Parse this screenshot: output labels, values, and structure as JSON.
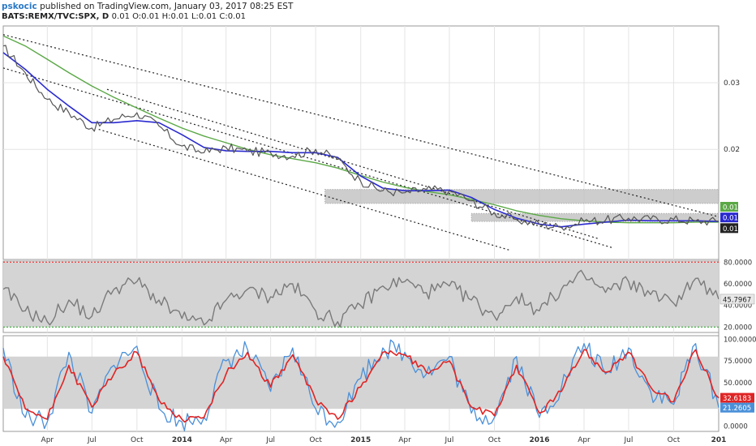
{
  "header": {
    "author": "pskocic",
    "published": "published on TradingView.com, January 03, 2017 08:25 EST",
    "symbol": "BATS:REMX/TVC:SPX, D",
    "ohlc": "0.01 O:0.01 H:0.01 L:0.01 C:0.01"
  },
  "colors": {
    "price": "#555555",
    "ma_fast": "#2a2ad0",
    "ma_slow": "#5aa845",
    "rsi": "#7a7a7a",
    "stoch_k": "#4a90d9",
    "stoch_d": "#e02424",
    "band_fill": "#d4d4d4",
    "upper_level": "#ff3030",
    "lower_level": "#35a835",
    "zone_fill": "#bcbcbc"
  },
  "chart_data": [
    {
      "type": "line",
      "pane": "main",
      "y_ticks": [
        "0.03",
        "0.02"
      ],
      "y_tick_values": [
        0.03,
        0.02
      ],
      "ylim": [
        0.0035,
        0.0385
      ],
      "x": [
        "2013-01-01",
        "2013-02-15",
        "2013-04-01",
        "2013-05-15",
        "2013-07-01",
        "2013-08-15",
        "2013-10-01",
        "2013-11-15",
        "2014-01-01",
        "2014-02-15",
        "2014-04-01",
        "2014-05-15",
        "2014-07-01",
        "2014-08-15",
        "2014-10-01",
        "2014-11-15",
        "2015-01-01",
        "2015-02-15",
        "2015-04-01",
        "2015-05-15",
        "2015-07-01",
        "2015-08-15",
        "2015-10-01",
        "2015-11-15",
        "2016-01-01",
        "2016-02-15",
        "2016-04-01",
        "2016-05-15",
        "2016-07-01",
        "2016-08-15",
        "2016-10-01",
        "2016-11-15",
        "2017-01-01"
      ],
      "series": [
        {
          "key": "price",
          "values": [
            0.0355,
            0.0315,
            0.0275,
            0.0255,
            0.0232,
            0.0245,
            0.0255,
            0.0235,
            0.0205,
            0.0195,
            0.0203,
            0.0197,
            0.0195,
            0.019,
            0.02,
            0.0185,
            0.0152,
            0.0138,
            0.0135,
            0.014,
            0.0138,
            0.0123,
            0.0105,
            0.0095,
            0.0088,
            0.0083,
            0.0092,
            0.0094,
            0.0097,
            0.0095,
            0.0095,
            0.0093,
            0.0092
          ]
        },
        {
          "key": "ma_fast",
          "values": [
            0.0345,
            0.032,
            0.029,
            0.0265,
            0.024,
            0.024,
            0.0243,
            0.024,
            0.0222,
            0.0203,
            0.0198,
            0.0197,
            0.0197,
            0.0195,
            0.0195,
            0.0188,
            0.016,
            0.0142,
            0.0138,
            0.0138,
            0.0139,
            0.0128,
            0.011,
            0.0097,
            0.0088,
            0.0084,
            0.0088,
            0.0091,
            0.0094,
            0.0093,
            0.0093,
            0.0093,
            0.0092
          ]
        },
        {
          "key": "ma_slow",
          "values": [
            0.037,
            0.0355,
            0.0335,
            0.0315,
            0.0295,
            0.0278,
            0.0262,
            0.0247,
            0.0232,
            0.022,
            0.021,
            0.02,
            0.0192,
            0.0186,
            0.018,
            0.0172,
            0.0161,
            0.0151,
            0.0143,
            0.0137,
            0.0132,
            0.0125,
            0.0117,
            0.0108,
            0.0101,
            0.0096,
            0.0093,
            0.0091,
            0.009,
            0.009,
            0.009,
            0.0091,
            0.0091
          ]
        }
      ],
      "channel_lines": [
        {
          "x": [
            "2013-01-01",
            "2017-01-01"
          ],
          "y": [
            0.0372,
            0.0099
          ]
        },
        {
          "x": [
            "2013-01-01",
            "2016-06-01"
          ],
          "y": [
            0.0322,
            0.0052
          ]
        },
        {
          "x": [
            "2013-07-15",
            "2015-11-01"
          ],
          "y": [
            0.023,
            0.0049
          ]
        },
        {
          "x": [
            "2013-08-01",
            "2016-05-01"
          ],
          "y": [
            0.029,
            0.0066
          ]
        }
      ],
      "zones": [
        {
          "x": [
            "2014-10-20",
            "2017-01-01"
          ],
          "y": [
            0.014,
            0.0119
          ]
        },
        {
          "x": [
            "2015-08-15",
            "2017-01-01"
          ],
          "y": [
            0.0104,
            0.0092
          ]
        }
      ],
      "value_labels": [
        {
          "text": "0.01",
          "y": 0.0114,
          "color_key": "ma_slow"
        },
        {
          "text": "0.01",
          "y": 0.0098,
          "color_key": "ma_fast"
        },
        {
          "text": "0.01",
          "y": 0.0082,
          "color_key": "price"
        }
      ]
    },
    {
      "type": "line",
      "pane": "rsi",
      "y_ticks": [
        "80.0000",
        "60.0000",
        "40.0000",
        "20.0000"
      ],
      "y_tick_values": [
        80,
        60,
        40,
        20
      ],
      "ylim": [
        15,
        81
      ],
      "levels": [
        80,
        20
      ],
      "band": [
        80,
        20
      ],
      "last_value_label": "45.7967",
      "last_value": 45.8,
      "x": [
        "2013-01-01",
        "2013-02-15",
        "2013-04-01",
        "2013-05-15",
        "2013-07-01",
        "2013-08-15",
        "2013-10-01",
        "2013-11-15",
        "2014-01-01",
        "2014-02-15",
        "2014-04-01",
        "2014-05-15",
        "2014-07-01",
        "2014-08-15",
        "2014-10-01",
        "2014-11-15",
        "2015-01-01",
        "2015-02-15",
        "2015-04-01",
        "2015-05-15",
        "2015-07-01",
        "2015-08-15",
        "2015-10-01",
        "2015-11-15",
        "2016-01-01",
        "2016-02-15",
        "2016-04-01",
        "2016-05-15",
        "2016-07-01",
        "2016-08-15",
        "2016-10-01",
        "2016-11-15",
        "2017-01-01"
      ],
      "series": [
        {
          "key": "rsi",
          "values": [
            55,
            35,
            25,
            45,
            30,
            55,
            62,
            45,
            28,
            22,
            45,
            55,
            48,
            60,
            35,
            25,
            40,
            58,
            62,
            52,
            58,
            45,
            30,
            48,
            35,
            55,
            68,
            52,
            62,
            50,
            42,
            65,
            45.8
          ]
        }
      ]
    },
    {
      "type": "line",
      "pane": "stochastic",
      "y_ticks": [
        "100.0000",
        "75.0000",
        "50.0000",
        "25.0000",
        "0.0000"
      ],
      "y_tick_values": [
        100,
        75,
        50,
        25,
        0
      ],
      "ylim": [
        -6,
        104
      ],
      "band": [
        80,
        20
      ],
      "last_values": [
        {
          "label": "32.6183",
          "color_key": "stoch_d",
          "value": 32.6
        },
        {
          "label": "21.2605",
          "color_key": "stoch_k",
          "value": 21.3
        }
      ],
      "x": [
        "2013-01-01",
        "2013-02-15",
        "2013-04-01",
        "2013-05-15",
        "2013-07-01",
        "2013-08-15",
        "2013-10-01",
        "2013-11-15",
        "2014-01-01",
        "2014-02-15",
        "2014-04-01",
        "2014-05-15",
        "2014-07-01",
        "2014-08-15",
        "2014-10-01",
        "2014-11-15",
        "2015-01-01",
        "2015-02-15",
        "2015-04-01",
        "2015-05-15",
        "2015-07-01",
        "2015-08-15",
        "2015-10-01",
        "2015-11-15",
        "2016-01-01",
        "2016-02-15",
        "2016-04-01",
        "2016-05-15",
        "2016-07-01",
        "2016-08-15",
        "2016-10-01",
        "2016-11-15",
        "2017-01-01"
      ],
      "series": [
        {
          "key": "stoch_k",
          "values": [
            90,
            10,
            5,
            85,
            15,
            70,
            92,
            20,
            5,
            10,
            75,
            88,
            40,
            90,
            20,
            5,
            55,
            90,
            85,
            60,
            80,
            15,
            10,
            80,
            10,
            45,
            95,
            60,
            90,
            40,
            25,
            95,
            21.3
          ]
        },
        {
          "key": "stoch_d",
          "values": [
            80,
            20,
            8,
            70,
            22,
            60,
            85,
            30,
            8,
            10,
            60,
            85,
            45,
            82,
            30,
            8,
            45,
            85,
            82,
            62,
            75,
            22,
            12,
            70,
            15,
            40,
            88,
            62,
            85,
            45,
            28,
            88,
            32.6
          ]
        }
      ]
    }
  ],
  "x_axis": {
    "ticks": [
      "Apr",
      "Jul",
      "Oct",
      "2014",
      "Apr",
      "Jul",
      "Oct",
      "2015",
      "Apr",
      "Jul",
      "Oct",
      "2016",
      "Apr",
      "Jul",
      "Oct",
      "201"
    ],
    "tick_dates": [
      "2013-04-01",
      "2013-07-01",
      "2013-10-01",
      "2014-01-01",
      "2014-04-01",
      "2014-07-01",
      "2014-10-01",
      "2015-01-01",
      "2015-04-01",
      "2015-07-01",
      "2015-10-01",
      "2016-01-01",
      "2016-04-01",
      "2016-07-01",
      "2016-10-01",
      "2017-01-01"
    ],
    "bold": [
      false,
      false,
      false,
      true,
      false,
      false,
      false,
      true,
      false,
      false,
      false,
      true,
      false,
      false,
      false,
      true
    ]
  }
}
